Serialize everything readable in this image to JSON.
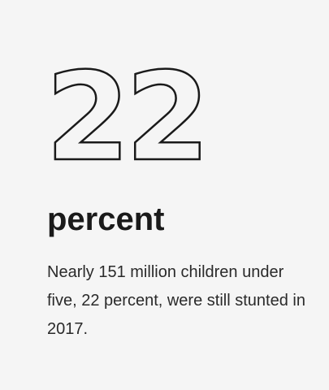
{
  "stat": {
    "number": "22",
    "unit": "percent",
    "description": "Nearly 151 million children under five, 22 percent, were still stunted in 2017."
  },
  "colors": {
    "background": "#f5f5f5",
    "text": "#1a1a1a"
  }
}
